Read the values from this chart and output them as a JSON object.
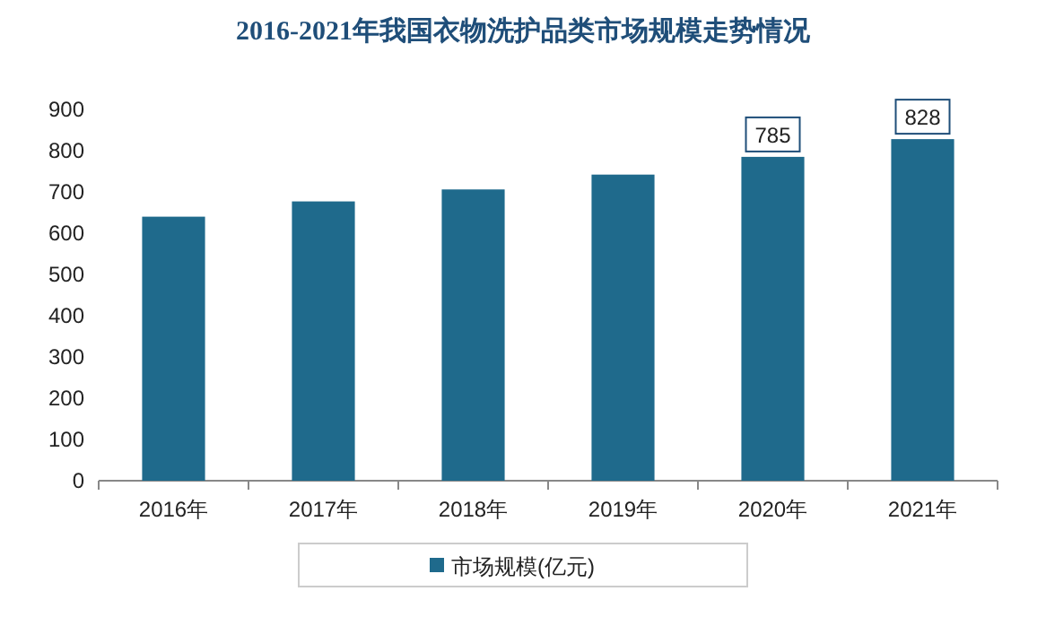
{
  "chart_data": {
    "type": "bar",
    "title": "2016-2021年我国衣物洗护品类市场规模走势情况",
    "categories": [
      "2016年",
      "2017年",
      "2018年",
      "2019年",
      "2020年",
      "2021年"
    ],
    "series": [
      {
        "name": "市场规模(亿元)",
        "color": "#1f6a8c",
        "values": [
          640,
          677,
          706,
          742,
          785,
          828
        ],
        "value_labels": [
          null,
          null,
          null,
          null,
          "785",
          "828"
        ]
      }
    ],
    "ylim": [
      0,
      900
    ],
    "yticks": [
      0,
      100,
      200,
      300,
      400,
      500,
      600,
      700,
      800,
      900
    ],
    "grid": false,
    "legend": "bottom"
  }
}
